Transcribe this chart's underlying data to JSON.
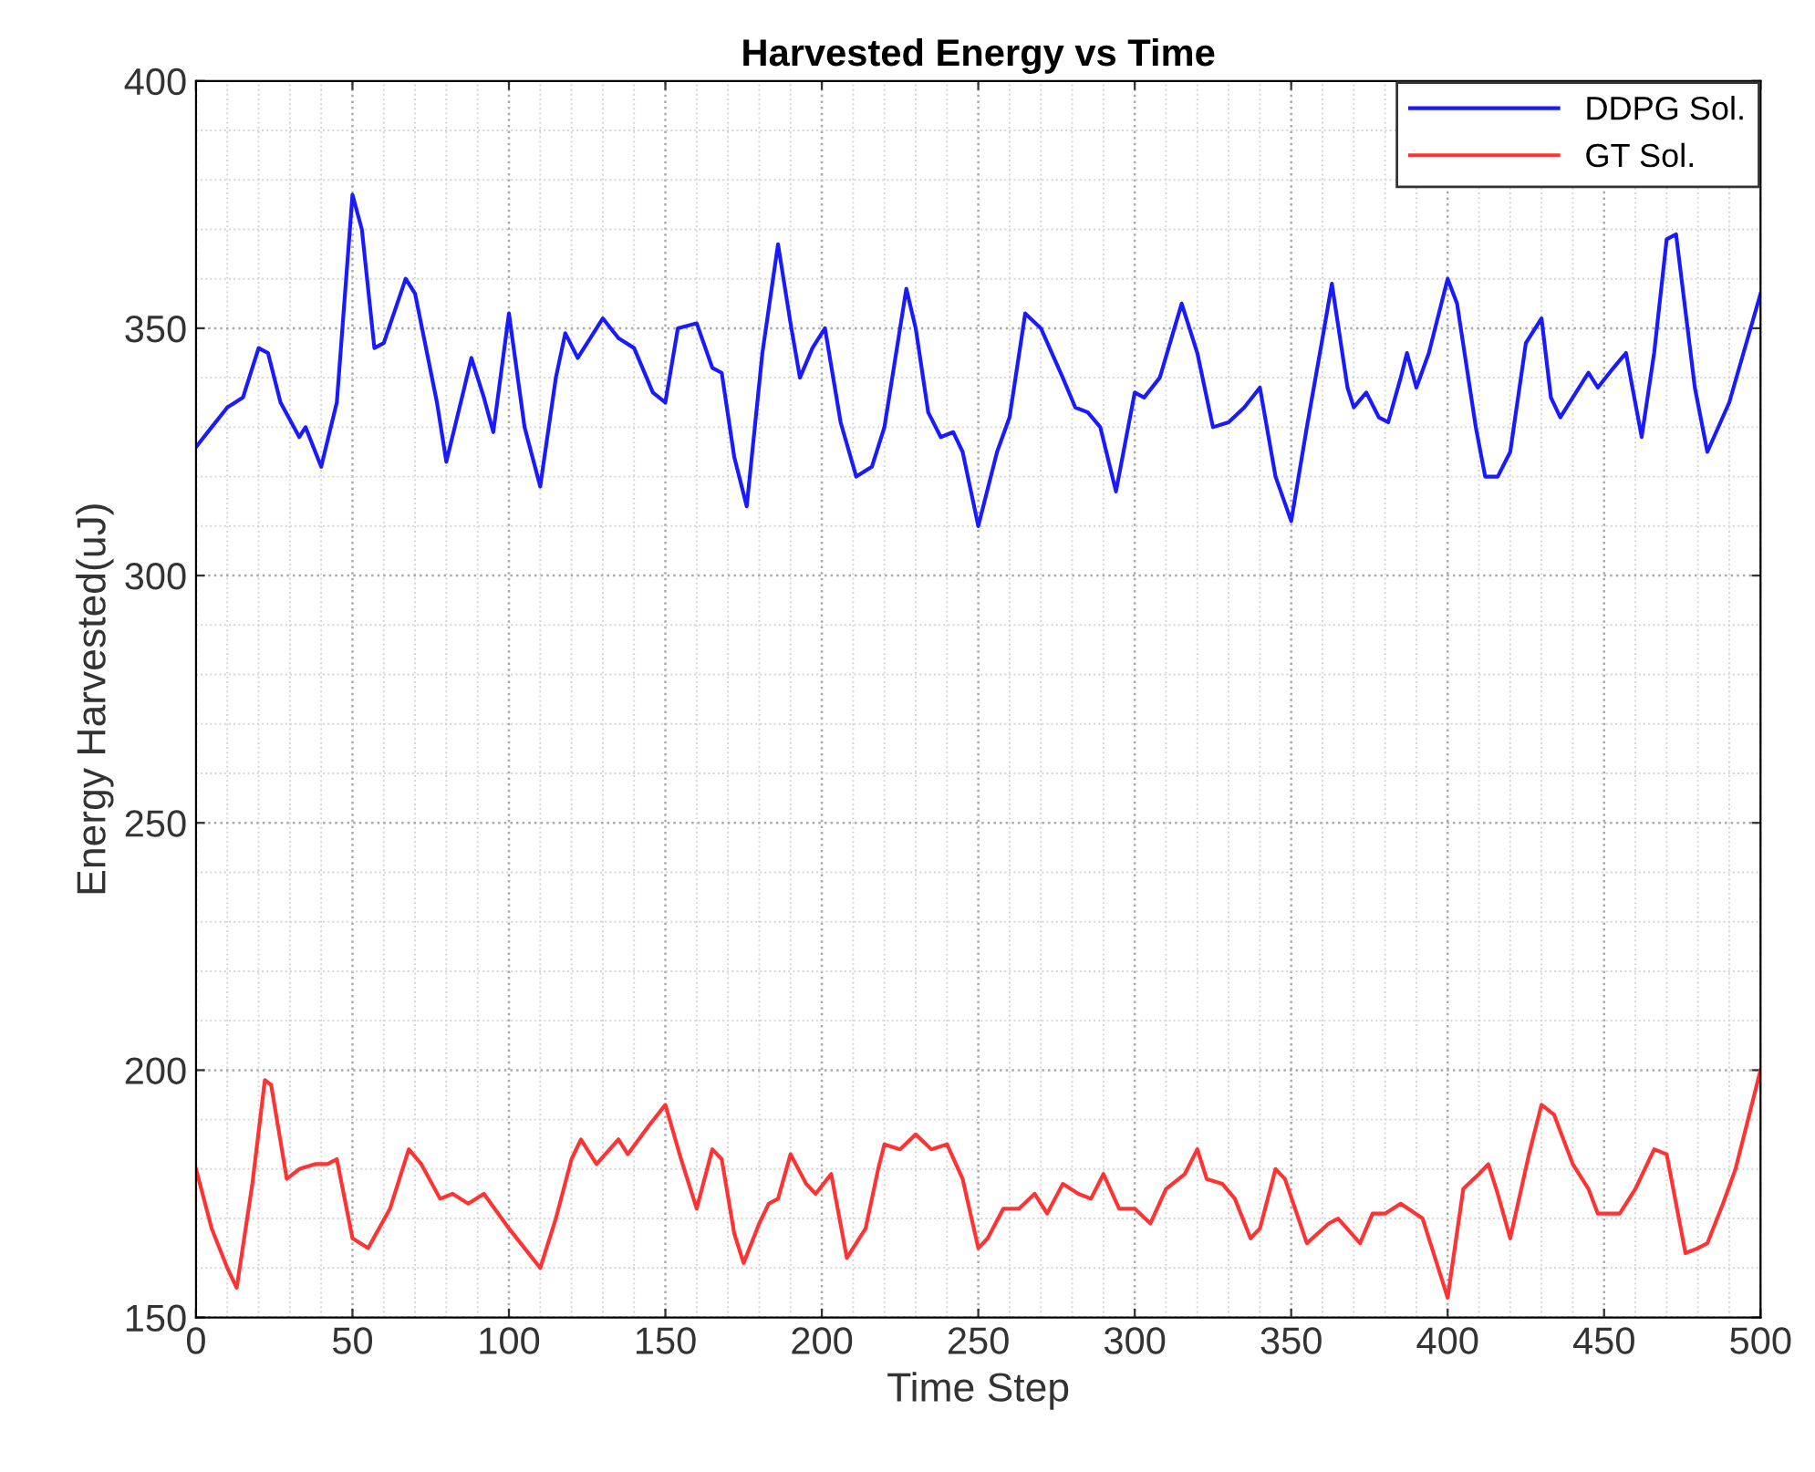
{
  "chart_data": {
    "type": "line",
    "title": "Harvested Energy vs Time",
    "xlabel": "Time Step",
    "ylabel": "Energy Harvested(uJ)",
    "xlim": [
      0,
      500
    ],
    "xticks": [
      0,
      50,
      100,
      150,
      200,
      250,
      300,
      350,
      400,
      450,
      500
    ],
    "ylim": [
      150,
      400
    ],
    "yticks": [
      150,
      200,
      250,
      300,
      350,
      400
    ],
    "grid": true,
    "legend": "top right",
    "marker": "none",
    "line_style": "solid",
    "series": [
      {
        "name": "DDPG Sol.",
        "color": "#1a1aff",
        "x": [
          0,
          5,
          10,
          15,
          20,
          23,
          27,
          33,
          35,
          40,
          45,
          50,
          53,
          57,
          60,
          67,
          70,
          77,
          80,
          85,
          88,
          92,
          95,
          100,
          105,
          110,
          115,
          118,
          122,
          127,
          130,
          135,
          140,
          146,
          150,
          154,
          160,
          165,
          168,
          172,
          176,
          181,
          186,
          190,
          193,
          197,
          201,
          206,
          211,
          216,
          220,
          227,
          230,
          234,
          238,
          242,
          245,
          250,
          256,
          260,
          265,
          270,
          277,
          281,
          285,
          289,
          294,
          300,
          303,
          308,
          315,
          320,
          325,
          330,
          335,
          340,
          345,
          350,
          355,
          360,
          363,
          368,
          370,
          374,
          378,
          381,
          385,
          387,
          390,
          394,
          400,
          403,
          409,
          412,
          416,
          420,
          425,
          430,
          433,
          436,
          440,
          445,
          448,
          453,
          457,
          462,
          466,
          470,
          473,
          479,
          483,
          490,
          500
        ],
        "values": [
          326,
          330,
          334,
          336,
          346,
          345,
          335,
          328,
          330,
          322,
          335,
          377,
          370,
          346,
          347,
          360,
          357,
          335,
          323,
          336,
          344,
          336,
          329,
          353,
          330,
          318,
          340,
          349,
          344,
          349,
          352,
          348,
          346,
          337,
          335,
          350,
          351,
          342,
          341,
          324,
          314,
          345,
          367,
          351,
          340,
          346,
          350,
          331,
          320,
          322,
          330,
          358,
          350,
          333,
          328,
          329,
          325,
          310,
          325,
          332,
          353,
          350,
          340,
          334,
          333,
          330,
          317,
          337,
          336,
          340,
          355,
          345,
          330,
          331,
          334,
          338,
          320,
          311,
          330,
          348,
          359,
          338,
          334,
          337,
          332,
          331,
          340,
          345,
          338,
          345,
          360,
          355,
          330,
          320,
          320,
          325,
          347,
          352,
          336,
          332,
          336,
          341,
          338,
          342,
          345,
          328,
          345,
          368,
          369,
          338,
          325,
          335,
          357
        ]
      },
      {
        "name": "GT Sol.",
        "color": "#ff3333",
        "x": [
          0,
          5,
          10,
          13,
          18,
          22,
          24,
          29,
          33,
          38,
          42,
          45,
          50,
          55,
          62,
          68,
          72,
          78,
          82,
          87,
          92,
          100,
          105,
          110,
          115,
          120,
          123,
          128,
          135,
          138,
          145,
          150,
          155,
          160,
          165,
          168,
          172,
          175,
          180,
          183,
          186,
          190,
          195,
          198,
          203,
          208,
          214,
          218,
          220,
          225,
          230,
          235,
          240,
          245,
          250,
          253,
          258,
          263,
          268,
          272,
          277,
          282,
          286,
          290,
          295,
          300,
          305,
          310,
          316,
          320,
          323,
          328,
          332,
          337,
          340,
          345,
          348,
          355,
          362,
          365,
          372,
          376,
          380,
          385,
          392,
          400,
          405,
          410,
          413,
          416,
          420,
          426,
          430,
          434,
          440,
          445,
          448,
          452,
          455,
          460,
          466,
          470,
          476,
          480,
          483,
          488,
          492,
          500
        ],
        "values": [
          180,
          168,
          160,
          156,
          177,
          198,
          197,
          178,
          180,
          181,
          181,
          182,
          166,
          164,
          172,
          184,
          181,
          174,
          175,
          173,
          175,
          168,
          164,
          160,
          170,
          182,
          186,
          181,
          186,
          183,
          189,
          193,
          182,
          172,
          184,
          182,
          167,
          161,
          169,
          173,
          174,
          183,
          177,
          175,
          179,
          162,
          168,
          180,
          185,
          184,
          187,
          184,
          185,
          178,
          164,
          166,
          172,
          172,
          175,
          171,
          177,
          175,
          174,
          179,
          172,
          172,
          169,
          176,
          179,
          184,
          178,
          177,
          174,
          166,
          168,
          180,
          178,
          165,
          169,
          170,
          165,
          171,
          171,
          173,
          170,
          154,
          176,
          179,
          181,
          175,
          166,
          183,
          193,
          191,
          181,
          176,
          171,
          171,
          171,
          176,
          184,
          183,
          163,
          164,
          165,
          173,
          180,
          200
        ]
      }
    ]
  }
}
